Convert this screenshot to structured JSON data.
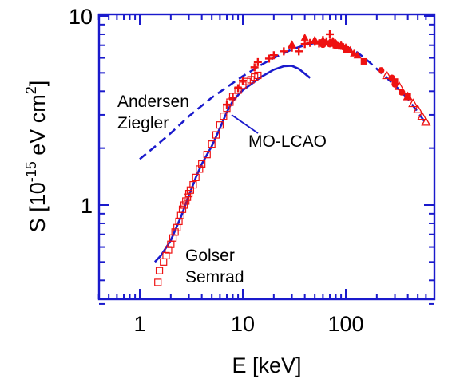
{
  "chart_data": {
    "type": "scatter",
    "xlabel": "E [keV]",
    "ylabel": {
      "prefix": "S  [10",
      "exp": "-15",
      "unit": " eV cm",
      "unit_exp": "2",
      "suffix": "]"
    },
    "xscale": "log",
    "yscale": "log",
    "xlim": [
      0.4,
      650
    ],
    "ylim": [
      0.3,
      10
    ],
    "x_ticks": [
      1,
      10,
      100
    ],
    "x_tick_labels": [
      "1",
      "10",
      "100"
    ],
    "y_ticks": [
      1,
      10
    ],
    "y_tick_labels": [
      "1",
      "10"
    ],
    "grid": false,
    "annotations": {
      "andersen": [
        "Andersen",
        "Ziegler"
      ],
      "molcao": "MO-LCAO",
      "golser": [
        "Golser",
        "Semrad"
      ]
    },
    "colors": {
      "axis": "#1a1acc",
      "curve": "#1a1acc",
      "data": "#ee1111"
    },
    "series": [
      {
        "style": "dashed-line",
        "points": [
          [
            1.0,
            1.75
          ],
          [
            1.5,
            2.1
          ],
          [
            2,
            2.4
          ],
          [
            3,
            2.95
          ],
          [
            5,
            3.7
          ],
          [
            7,
            4.2
          ],
          [
            10,
            4.8
          ],
          [
            15,
            5.5
          ],
          [
            20,
            6.0
          ],
          [
            30,
            6.65
          ],
          [
            40,
            7.0
          ],
          [
            50,
            7.2
          ],
          [
            60,
            7.25
          ],
          [
            70,
            7.2
          ],
          [
            80,
            7.1
          ],
          [
            100,
            6.9
          ],
          [
            130,
            6.4
          ],
          [
            170,
            5.7
          ],
          [
            220,
            5.0
          ],
          [
            300,
            4.3
          ],
          [
            400,
            3.65
          ],
          [
            500,
            3.1
          ],
          [
            600,
            2.7
          ]
        ]
      },
      {
        "style": "solid-line",
        "points": [
          [
            1.4,
            0.5
          ],
          [
            1.6,
            0.54
          ],
          [
            2,
            0.65
          ],
          [
            2.5,
            0.86
          ],
          [
            3,
            1.12
          ],
          [
            3.5,
            1.4
          ],
          [
            4,
            1.65
          ],
          [
            5,
            2.05
          ],
          [
            6,
            2.55
          ],
          [
            7,
            3.1
          ],
          [
            8,
            3.55
          ],
          [
            9,
            3.82
          ],
          [
            10,
            4.05
          ],
          [
            12,
            4.35
          ],
          [
            15,
            4.75
          ],
          [
            20,
            5.2
          ],
          [
            25,
            5.42
          ],
          [
            30,
            5.45
          ],
          [
            35,
            5.25
          ],
          [
            40,
            4.95
          ],
          [
            45,
            4.7
          ]
        ]
      },
      {
        "style": "open-square",
        "points": [
          [
            1.5,
            0.39
          ],
          [
            1.55,
            0.45
          ],
          [
            1.7,
            0.5
          ],
          [
            1.8,
            0.54
          ],
          [
            1.9,
            0.58
          ],
          [
            2.0,
            0.62
          ],
          [
            2.1,
            0.67
          ],
          [
            2.2,
            0.72
          ],
          [
            2.3,
            0.76
          ],
          [
            2.4,
            0.82
          ],
          [
            2.5,
            0.88
          ],
          [
            2.6,
            0.95
          ],
          [
            2.7,
            1.0
          ],
          [
            2.8,
            1.05
          ],
          [
            2.9,
            1.1
          ],
          [
            3.0,
            1.15
          ],
          [
            3.1,
            1.2
          ],
          [
            3.3,
            1.28
          ],
          [
            3.5,
            1.4
          ],
          [
            3.8,
            1.55
          ],
          [
            4.0,
            1.65
          ],
          [
            4.5,
            1.85
          ],
          [
            5.0,
            2.1
          ],
          [
            5.5,
            2.35
          ],
          [
            6.0,
            2.65
          ],
          [
            6.5,
            2.95
          ],
          [
            7.0,
            3.25
          ],
          [
            7.5,
            3.5
          ],
          [
            8.0,
            3.75
          ],
          [
            9.0,
            4.05
          ],
          [
            10,
            4.3
          ],
          [
            11,
            4.5
          ],
          [
            12,
            4.6
          ],
          [
            13,
            4.75
          ],
          [
            14,
            4.85
          ]
        ]
      },
      {
        "style": "plus",
        "points": [
          [
            7.0,
            3.4
          ],
          [
            8.0,
            3.7
          ],
          [
            9.0,
            4.15
          ],
          [
            10,
            4.55
          ],
          [
            13,
            5.35
          ],
          [
            14,
            5.7
          ],
          [
            18,
            5.95
          ],
          [
            20,
            6.2
          ],
          [
            25,
            6.5
          ],
          [
            30,
            6.8
          ],
          [
            35,
            6.5
          ],
          [
            40,
            7.1
          ],
          [
            45,
            7.2
          ],
          [
            50,
            7.3
          ],
          [
            55,
            7.15
          ],
          [
            60,
            7.45
          ],
          [
            65,
            7.35
          ],
          [
            70,
            8.0
          ],
          [
            75,
            7.2
          ],
          [
            80,
            7.1
          ],
          [
            90,
            6.95
          ],
          [
            100,
            6.75
          ]
        ]
      },
      {
        "style": "filled-triangle",
        "points": [
          [
            30,
            7.1
          ],
          [
            40,
            7.7
          ],
          [
            50,
            7.5
          ],
          [
            60,
            7.45
          ],
          [
            70,
            7.3
          ],
          [
            75,
            7.4
          ],
          [
            80,
            7.2
          ],
          [
            90,
            7.05
          ],
          [
            100,
            6.85
          ],
          [
            110,
            6.6
          ],
          [
            120,
            6.35
          ],
          [
            130,
            6.2
          ]
        ]
      },
      {
        "style": "filled-square",
        "points": [
          [
            70,
            7.15
          ],
          [
            80,
            7.0
          ],
          [
            90,
            6.9
          ],
          [
            100,
            6.65
          ],
          [
            150,
            5.75
          ],
          [
            300,
            4.5
          ],
          [
            400,
            3.75
          ]
        ]
      },
      {
        "style": "filled-circle",
        "points": [
          [
            60,
            7.05
          ],
          [
            70,
            7.1
          ],
          [
            80,
            6.95
          ],
          [
            100,
            6.7
          ],
          [
            220,
            5.15
          ],
          [
            280,
            4.7
          ],
          [
            300,
            4.35
          ],
          [
            350,
            3.95
          ]
        ]
      },
      {
        "style": "open-triangle",
        "points": [
          [
            250,
            4.85
          ],
          [
            330,
            4.25
          ],
          [
            400,
            3.75
          ],
          [
            450,
            3.45
          ],
          [
            500,
            3.2
          ],
          [
            550,
            2.95
          ],
          [
            600,
            2.75
          ]
        ]
      }
    ]
  }
}
